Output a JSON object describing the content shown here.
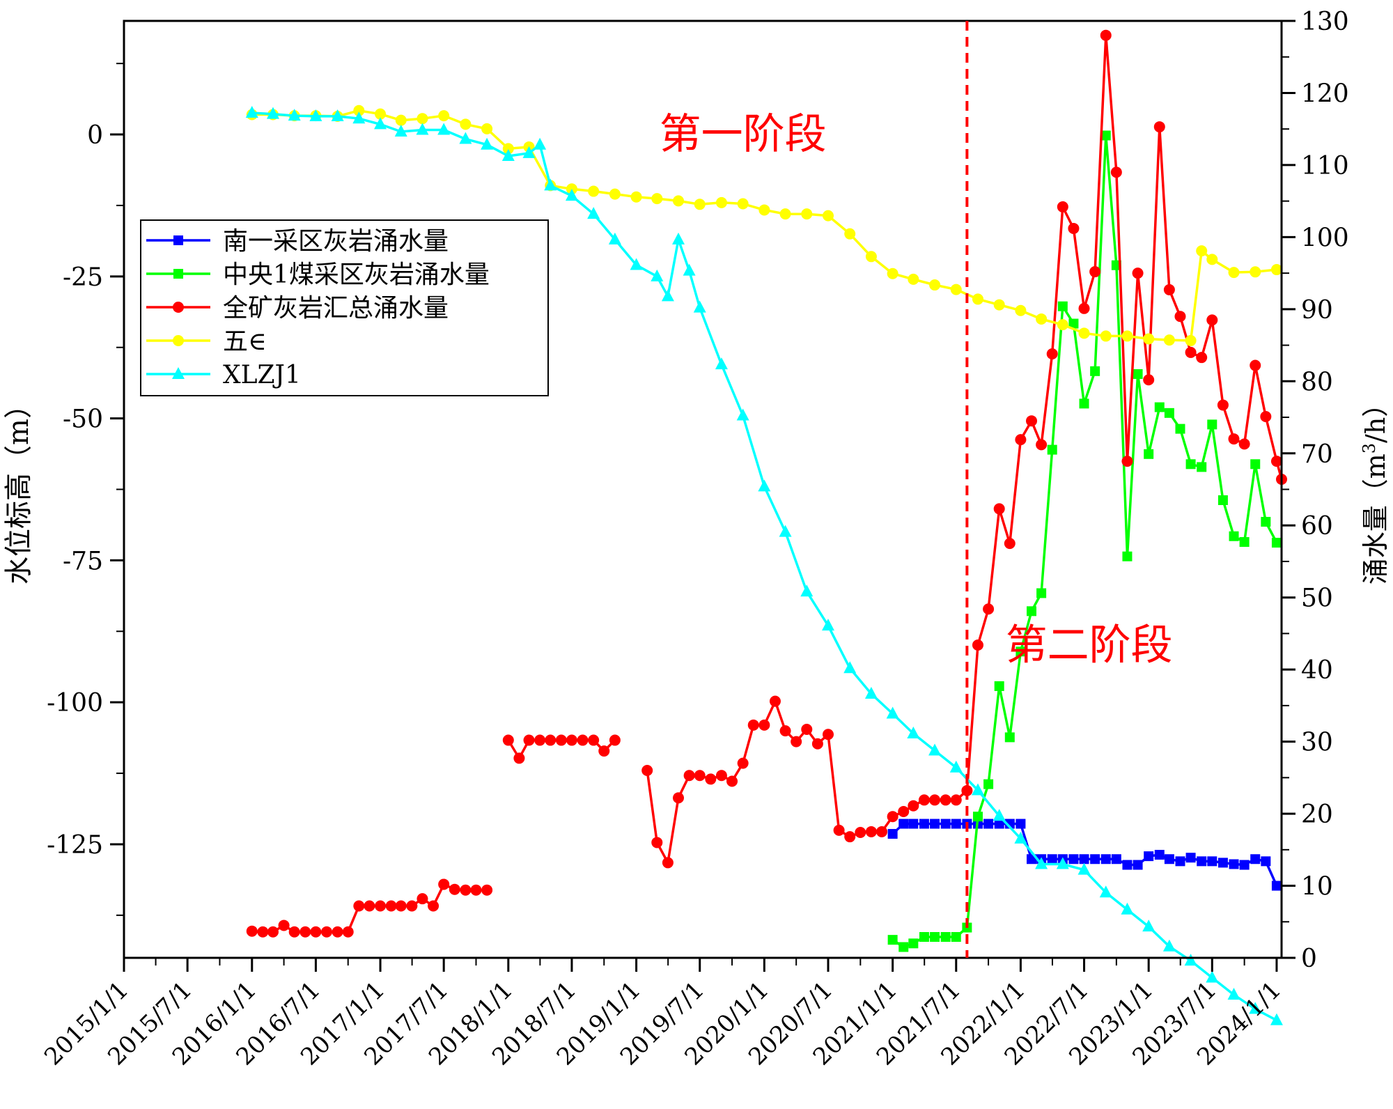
{
  "chart_data": {
    "type": "line",
    "ylabel": "水位标高（m）",
    "y2label_main": "涌水量（m",
    "y2label_sup": "3",
    "y2label_tail": "/h）",
    "xlim": [
      "2015/1/1",
      "2024/1/15"
    ],
    "ylim": [
      -145,
      20
    ],
    "y2lim": [
      0,
      130
    ],
    "x_ticks": [
      "2015/1/1",
      "2015/7/1",
      "2016/1/1",
      "2016/7/1",
      "2017/1/1",
      "2017/7/1",
      "2018/1/1",
      "2018/7/1",
      "2019/1/1",
      "2019/7/1",
      "2020/1/1",
      "2020/7/1",
      "2021/1/1",
      "2021/7/1",
      "2022/1/1",
      "2022/7/1",
      "2023/1/1",
      "2023/7/1",
      "2024/1/1"
    ],
    "y_ticks": [
      "0",
      "-25",
      "-50",
      "-75",
      "-100",
      "-125"
    ],
    "y2_ticks": [
      "0",
      "10",
      "20",
      "30",
      "40",
      "50",
      "60",
      "70",
      "80",
      "90",
      "100",
      "110",
      "120",
      "130"
    ],
    "stage_line_date": "2021/8/1",
    "annotations": [
      {
        "text": "第一阶段",
        "date": "2019/11/1",
        "y": 0
      },
      {
        "text": "第二阶段",
        "date": "2022/7/15",
        "y": -90
      }
    ],
    "legend_position": "upper-left",
    "series": [
      {
        "name": "南一采区灰岩涌水量",
        "color": "#0000ff",
        "marker": "square",
        "axis": "right",
        "x": [
          "2021/1/1",
          "2021/2/1",
          "2021/3/1",
          "2021/4/1",
          "2021/5/1",
          "2021/6/1",
          "2021/7/1",
          "2021/8/1",
          "2021/9/1",
          "2021/10/1",
          "2021/11/1",
          "2021/12/1",
          "2022/1/1",
          "2022/2/1",
          "2022/3/1",
          "2022/4/1",
          "2022/5/1",
          "2022/6/1",
          "2022/7/1",
          "2022/8/1",
          "2022/9/1",
          "2022/10/1",
          "2022/11/1",
          "2022/12/1",
          "2023/1/1",
          "2023/2/1",
          "2023/3/1",
          "2023/4/1",
          "2023/5/1",
          "2023/6/1",
          "2023/7/1",
          "2023/8/1",
          "2023/9/1",
          "2023/10/1",
          "2023/11/1",
          "2023/12/1",
          "2024/1/1"
        ],
        "y": [
          17.2,
          18.6,
          18.6,
          18.6,
          18.6,
          18.6,
          18.6,
          18.6,
          18.6,
          18.6,
          18.6,
          18.6,
          18.6,
          13.7,
          13.7,
          13.7,
          13.7,
          13.7,
          13.7,
          13.7,
          13.7,
          13.7,
          12.9,
          12.9,
          14.1,
          14.3,
          13.7,
          13.4,
          13.9,
          13.4,
          13.4,
          13.2,
          13.0,
          12.9,
          13.7,
          13.4,
          10.0
        ]
      },
      {
        "name": "中央1煤采区灰岩涌水量",
        "color": "#00ff00",
        "marker": "square",
        "axis": "right",
        "x": [
          "2021/1/1",
          "2021/2/1",
          "2021/3/1",
          "2021/4/1",
          "2021/5/1",
          "2021/6/1",
          "2021/7/1",
          "2021/8/1",
          "2021/9/1",
          "2021/10/1",
          "2021/11/1",
          "2021/12/1",
          "2022/1/1",
          "2022/2/1",
          "2022/3/1",
          "2022/4/1",
          "2022/5/1",
          "2022/6/1",
          "2022/7/1",
          "2022/8/1",
          "2022/9/1",
          "2022/10/1",
          "2022/11/1",
          "2022/12/1",
          "2023/1/1",
          "2023/2/1",
          "2023/3/1",
          "2023/4/1",
          "2023/5/1",
          "2023/6/1",
          "2023/7/1",
          "2023/8/1",
          "2023/9/1",
          "2023/10/1",
          "2023/11/1",
          "2023/12/1",
          "2024/1/1"
        ],
        "y": [
          2.5,
          1.5,
          2.0,
          2.9,
          2.9,
          2.9,
          2.9,
          4.2,
          19.6,
          24.1,
          37.7,
          30.6,
          42.5,
          48.1,
          50.6,
          70.5,
          90.4,
          88.0,
          76.9,
          81.4,
          114.1,
          96.1,
          55.7,
          81.0,
          69.9,
          76.4,
          75.6,
          73.4,
          68.5,
          68.1,
          74.0,
          63.5,
          58.5,
          57.7,
          68.5,
          60.5,
          57.6
        ]
      },
      {
        "name": "全矿灰岩汇总涌水量",
        "color": "#ff0000",
        "marker": "circle",
        "axis": "right",
        "x": [
          "2016/1/1",
          "2016/2/1",
          "2016/3/1",
          "2016/4/1",
          "2016/5/1",
          "2016/6/1",
          "2016/7/1",
          "2016/8/1",
          "2016/9/1",
          "2016/10/1",
          "2016/11/1",
          "2016/12/1",
          "2017/1/1",
          "2017/2/1",
          "2017/3/1",
          "2017/4/1",
          "2017/5/1",
          "2017/6/1",
          "2017/7/1",
          "2017/8/1",
          "2017/9/1",
          "2017/10/1",
          "2017/11/1",
          "2017/12/1",
          null,
          "2018/1/1",
          "2018/2/1",
          "2018/3/1",
          "2018/4/1",
          "2018/5/1",
          "2018/6/1",
          "2018/7/1",
          "2018/8/1",
          "2018/9/1",
          "2018/10/1",
          "2018/11/1",
          "2018/12/1",
          null,
          "2019/2/1",
          "2019/3/1",
          "2019/4/1",
          "2019/5/1",
          "2019/6/1",
          "2019/7/1",
          "2019/8/1",
          "2019/9/1",
          "2019/10/1",
          "2019/11/1",
          "2019/12/1",
          "2020/1/1",
          "2020/2/1",
          "2020/3/1",
          "2020/4/1",
          "2020/5/1",
          "2020/6/1",
          "2020/7/1",
          "2020/8/1",
          "2020/9/1",
          "2020/10/1",
          "2020/11/1",
          "2020/12/1",
          "2021/1/1",
          "2021/2/1",
          "2021/3/1",
          "2021/4/1",
          "2021/5/1",
          "2021/6/1",
          "2021/7/1",
          "2021/8/1",
          "2021/9/1",
          "2021/10/1",
          "2021/11/1",
          "2021/12/1",
          "2022/1/1",
          "2022/2/1",
          "2022/3/1",
          "2022/4/1",
          "2022/5/1",
          "2022/6/1",
          "2022/7/1",
          "2022/8/1",
          "2022/9/1",
          "2022/10/1",
          "2022/11/1",
          "2022/12/1",
          "2023/1/1",
          "2023/2/1",
          "2023/3/1",
          "2023/4/1",
          "2023/5/1",
          "2023/6/1",
          "2023/7/1",
          "2023/8/1",
          "2023/9/1",
          "2023/10/1",
          "2023/11/1",
          "2023/12/1",
          "2024/1/1",
          "2024/1/15"
        ],
        "y": [
          3.7,
          3.6,
          3.6,
          4.5,
          3.6,
          3.6,
          3.6,
          3.6,
          3.6,
          3.6,
          7.2,
          7.2,
          7.2,
          7.2,
          7.2,
          7.2,
          8.2,
          7.2,
          10.2,
          9.5,
          9.4,
          9.4,
          9.4,
          null,
          null,
          30.2,
          27.7,
          30.2,
          30.2,
          30.2,
          30.2,
          30.2,
          30.2,
          30.2,
          28.7,
          30.2,
          null,
          null,
          26.0,
          16.0,
          13.2,
          22.2,
          25.3,
          25.3,
          24.8,
          25.3,
          24.5,
          27.0,
          32.3,
          32.3,
          35.6,
          31.5,
          30.0,
          31.7,
          29.7,
          31.0,
          17.7,
          16.8,
          17.4,
          17.5,
          17.5,
          19.6,
          20.3,
          21.1,
          21.9,
          21.9,
          21.9,
          21.9,
          23.2,
          43.4,
          48.4,
          62.3,
          57.5,
          71.9,
          74.5,
          71.2,
          83.8,
          104.2,
          101.2,
          90.1,
          95.2,
          128.0,
          109.0,
          68.9,
          95.0,
          80.2,
          115.3,
          92.7,
          89.0,
          84.0,
          83.3,
          88.5,
          76.7,
          72.0,
          71.3,
          82.2,
          75.1,
          68.9,
          66.4
        ]
      },
      {
        "name": "五∈",
        "color": "#ffff00",
        "marker": "circle",
        "axis": "left",
        "x": [
          "2016/1/1",
          "2016/3/1",
          "2016/5/1",
          "2016/7/1",
          "2016/9/1",
          "2016/11/1",
          "2017/1/1",
          "2017/3/1",
          "2017/5/1",
          "2017/7/1",
          "2017/9/1",
          "2017/11/1",
          "2018/1/1",
          "2018/3/1",
          "2018/5/1",
          "2018/7/1",
          "2018/9/1",
          "2018/11/1",
          "2019/1/1",
          "2019/3/1",
          "2019/5/1",
          "2019/7/1",
          "2019/9/1",
          "2019/11/1",
          "2020/1/1",
          "2020/3/1",
          "2020/5/1",
          "2020/7/1",
          "2020/9/1",
          "2020/11/1",
          "2021/1/1",
          "2021/3/1",
          "2021/5/1",
          "2021/7/1",
          "2021/9/1",
          "2021/11/1",
          "2022/1/1",
          "2022/3/1",
          "2022/5/1",
          "2022/7/1",
          "2022/9/1",
          "2022/11/1",
          "2023/1/1",
          "2023/3/1",
          "2023/5/1",
          "2023/6/1",
          "2023/7/1",
          "2023/9/1",
          "2023/11/1",
          "2024/1/1"
        ],
        "y": [
          3.5,
          3.5,
          3.3,
          3.3,
          3.2,
          4.2,
          3.6,
          2.5,
          2.8,
          3.3,
          1.8,
          1.0,
          -2.5,
          -2.2,
          -9.0,
          -9.6,
          -10.0,
          -10.5,
          -11.0,
          -11.3,
          -11.7,
          -12.3,
          -12.0,
          -12.2,
          -13.3,
          -14.0,
          -14.0,
          -14.3,
          -17.5,
          -21.5,
          -24.5,
          -25.5,
          -26.5,
          -27.3,
          -29.0,
          -30.0,
          -31.0,
          -32.5,
          -33.5,
          -35.0,
          -35.5,
          -35.5,
          -36.0,
          -36.2,
          -36.3,
          -20.5,
          -22.0,
          -24.3,
          -24.2,
          -23.8
        ]
      },
      {
        "name": "XLZJ1",
        "color": "#00ffff",
        "marker": "triangle",
        "axis": "left",
        "x": [
          "2016/1/1",
          "2016/3/1",
          "2016/5/1",
          "2016/7/1",
          "2016/9/1",
          "2016/11/1",
          "2017/1/1",
          "2017/3/1",
          "2017/5/1",
          "2017/7/1",
          "2017/9/1",
          "2017/11/1",
          "2018/1/1",
          "2018/3/1",
          "2018/4/1",
          "2018/5/1",
          "2018/7/1",
          "2018/9/1",
          "2018/11/1",
          "2019/1/1",
          "2019/3/1",
          "2019/4/1",
          "2019/5/1",
          "2019/6/1",
          "2019/7/1",
          "2019/9/1",
          "2019/11/1",
          "2020/1/1",
          "2020/3/1",
          "2020/5/1",
          "2020/7/1",
          "2020/9/1",
          "2020/11/1",
          "2021/1/1",
          "2021/3/1",
          "2021/5/1",
          "2021/7/1",
          "2021/9/1",
          "2021/11/1",
          "2022/1/1",
          "2022/3/1",
          "2022/5/1",
          "2022/7/1",
          "2022/9/1",
          "2022/11/1",
          "2023/1/1",
          "2023/3/1",
          "2023/5/1",
          "2023/7/1",
          "2023/9/1",
          "2023/11/1",
          "2024/1/1"
        ],
        "y": [
          3.8,
          3.6,
          3.3,
          3.2,
          3.2,
          2.8,
          1.8,
          0.5,
          0.8,
          0.8,
          -0.8,
          -1.8,
          -3.8,
          -3.3,
          -1.8,
          -9.0,
          -10.8,
          -14.0,
          -18.5,
          -23.0,
          -25.0,
          -28.5,
          -18.5,
          -24.0,
          -30.5,
          -40.5,
          -49.5,
          -62.0,
          -70.0,
          -80.5,
          -86.5,
          -94.0,
          -98.5,
          -102.0,
          -105.5,
          -108.5,
          -111.5,
          -115.5,
          -120.0,
          -124.0,
          -128.5,
          -128.5,
          -129.5,
          -133.5,
          -136.5,
          -139.5,
          -143.0,
          -145.5,
          -148.5,
          -151.5,
          -154.0,
          -156.0
        ]
      }
    ]
  }
}
